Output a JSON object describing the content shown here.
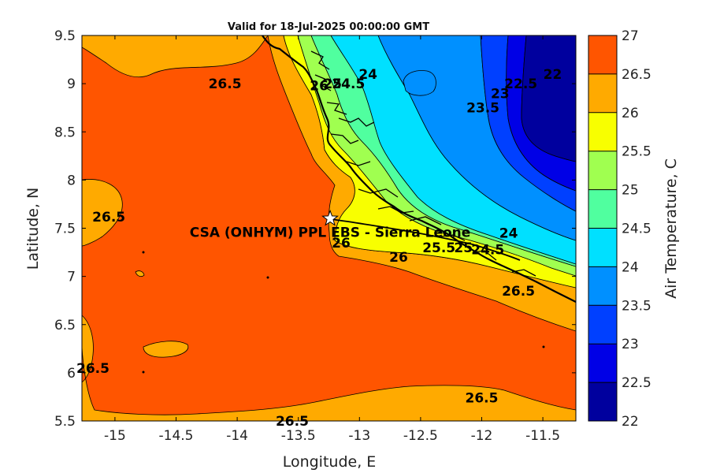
{
  "title": "Valid for 18-Jul-2025 00:00:00 GMT",
  "axes": {
    "xlabel": "Longitude, E",
    "ylabel": "Latitude, N",
    "xlim": [
      -15.27,
      -11.23
    ],
    "ylim": [
      5.5,
      9.5
    ],
    "xticks": [
      -15,
      -14.5,
      -14,
      -13.5,
      -13,
      -12.5,
      -12,
      -11.5
    ],
    "xtick_labels": [
      "-15",
      "-14.5",
      "-14",
      "-13.5",
      "-13",
      "-12.5",
      "-12",
      "-11.5"
    ],
    "yticks": [
      5.5,
      6,
      6.5,
      7,
      7.5,
      8,
      8.5,
      9,
      9.5
    ],
    "ytick_labels": [
      "5.5",
      "6",
      "6.5",
      "7",
      "7.5",
      "8",
      "8.5",
      "9",
      "9.5"
    ]
  },
  "colorbar": {
    "label": "Air Temperature, C",
    "levels": [
      22,
      22.5,
      23,
      23.5,
      24,
      24.5,
      25,
      25.5,
      26,
      26.5,
      27
    ],
    "tick_labels": [
      "22",
      "22.5",
      "23",
      "23.5",
      "24",
      "24.5",
      "25",
      "25.5",
      "26",
      "26.5",
      "27"
    ],
    "colors": [
      "#00009e",
      "#0000e6",
      "#0040ff",
      "#0090ff",
      "#00e0ff",
      "#50ff9f",
      "#a0ff50",
      "#f8ff00",
      "#ffaa00",
      "#ff5500",
      "#ff0000"
    ]
  },
  "site": {
    "name": "CSA (ONHYM) PPL EBS - Sierra Leone",
    "lon": -13.24,
    "lat": 7.6,
    "marker": "star-icon"
  },
  "chart_data": {
    "type": "heatmap",
    "title": "Valid for 18-Jul-2025 00:00:00 GMT",
    "xlabel": "Longitude, E",
    "ylabel": "Latitude, N",
    "zlabel": "Air Temperature, C",
    "xlim": [
      -15.27,
      -11.23
    ],
    "ylim": [
      5.5,
      9.5
    ],
    "zlim": [
      22,
      27
    ],
    "contour_levels": [
      22,
      22.5,
      23,
      23.5,
      24,
      24.5,
      25,
      25.5,
      26,
      26.5,
      27
    ],
    "contour_labels": [
      {
        "text": "26.5",
        "lon": -14.1,
        "lat": 9.0
      },
      {
        "text": "26.5",
        "lon": -15.05,
        "lat": 7.62
      },
      {
        "text": "26.5",
        "lon": -15.25,
        "lat": 6.05
      },
      {
        "text": "26.5",
        "lon": -13.55,
        "lat": 5.5
      },
      {
        "text": "26.5",
        "lon": -12.0,
        "lat": 5.74
      },
      {
        "text": "26.5",
        "lon": -11.7,
        "lat": 6.85
      },
      {
        "text": "26",
        "lon": -12.68,
        "lat": 7.2
      },
      {
        "text": "26",
        "lon": -13.33,
        "lat": 8.98
      },
      {
        "text": "25.5",
        "lon": -12.35,
        "lat": 7.3
      },
      {
        "text": "25",
        "lon": -12.15,
        "lat": 7.3
      },
      {
        "text": "24.5",
        "lon": -11.95,
        "lat": 7.28
      },
      {
        "text": "24",
        "lon": -11.78,
        "lat": 7.45
      },
      {
        "text": "25",
        "lon": -13.22,
        "lat": 9.0
      },
      {
        "text": "24.5",
        "lon": -13.09,
        "lat": 9.0
      },
      {
        "text": "24",
        "lon": -12.93,
        "lat": 9.1
      },
      {
        "text": "23.5",
        "lon": -11.99,
        "lat": 8.75
      },
      {
        "text": "23",
        "lon": -11.85,
        "lat": 8.9
      },
      {
        "text": "22.5",
        "lon": -11.68,
        "lat": 9.0
      },
      {
        "text": "22",
        "lon": -11.42,
        "lat": 9.1
      },
      {
        "text": "26",
        "lon": -13.15,
        "lat": 7.35
      }
    ]
  }
}
